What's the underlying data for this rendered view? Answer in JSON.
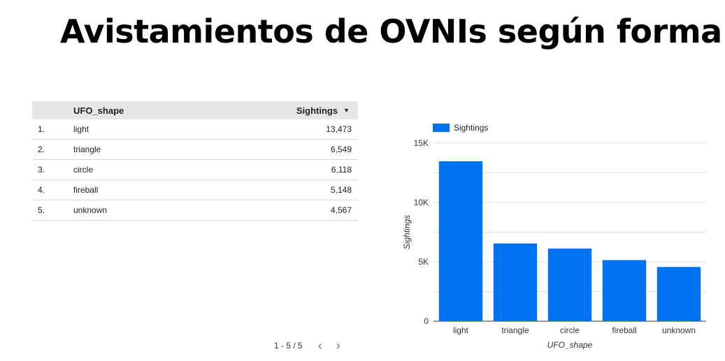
{
  "title": "Avistamientos de OVNIs según forma",
  "table": {
    "columns": [
      "UFO_shape",
      "Sightings"
    ],
    "sort_icon": "sort-descending-icon",
    "rows": [
      {
        "index": "1.",
        "shape": "light",
        "value": "13,473"
      },
      {
        "index": "2.",
        "shape": "triangle",
        "value": "6,549"
      },
      {
        "index": "3.",
        "shape": "circle",
        "value": "6,118"
      },
      {
        "index": "4.",
        "shape": "fireball",
        "value": "5,148"
      },
      {
        "index": "5.",
        "shape": "unknown",
        "value": "4,567"
      }
    ],
    "pagination": "1 - 5 / 5"
  },
  "chart_data": {
    "type": "bar",
    "categories": [
      "light",
      "triangle",
      "circle",
      "fireball",
      "unknown"
    ],
    "series": [
      {
        "name": "Sightings",
        "values": [
          13473,
          6549,
          6118,
          5148,
          4567
        ],
        "color": "#0072f0"
      }
    ],
    "xlabel": "UFO_shape",
    "ylabel": "Sightings",
    "ylim": [
      0,
      15000
    ],
    "yticks": [
      0,
      5000,
      10000,
      15000
    ],
    "ytick_labels": [
      "0",
      "5K",
      "10K",
      "15K"
    ],
    "grid": true,
    "legend": "top-left"
  }
}
